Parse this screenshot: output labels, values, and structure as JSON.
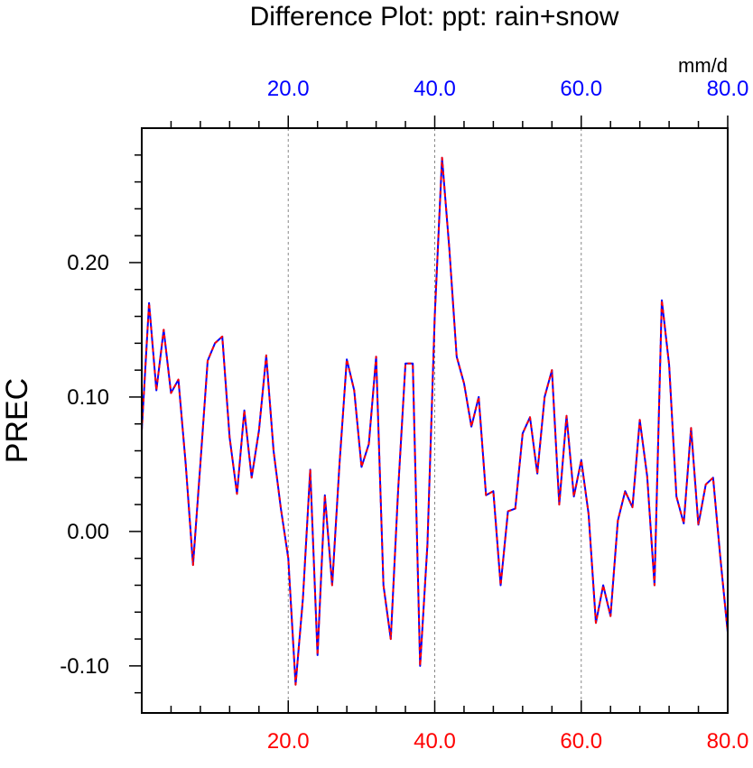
{
  "chart_data": {
    "type": "line",
    "title": "Difference Plot: ppt: rain+snow",
    "ylabel": "PREC",
    "top_axis_unit": "mm/d",
    "xlim": [
      0,
      80
    ],
    "ylim": [
      -0.135,
      0.3
    ],
    "x_ticks": [
      20,
      40,
      60,
      80
    ],
    "x_tick_labels": [
      "20.0",
      "40.0",
      "60.0",
      "80.0"
    ],
    "y_ticks": [
      -0.1,
      0.0,
      0.1,
      0.2
    ],
    "y_tick_labels": [
      "-0.10",
      "0.00",
      "0.10",
      "0.20"
    ],
    "bottom_tick_color": "#ff0000",
    "top_tick_color": "#0000ff",
    "vertical_gridlines_at": [
      20,
      40,
      60
    ],
    "series": [
      {
        "color": "#0000ff",
        "style": "solid",
        "x": [
          0,
          1,
          2,
          3,
          4,
          5,
          6,
          7,
          8,
          9,
          10,
          11,
          12,
          13,
          14,
          15,
          16,
          17,
          18,
          19,
          20,
          21,
          22,
          23,
          24,
          25,
          26,
          27,
          28,
          29,
          30,
          31,
          32,
          33,
          34,
          35,
          36,
          37,
          38,
          39,
          40,
          41,
          42,
          43,
          44,
          45,
          46,
          47,
          48,
          49,
          50,
          51,
          52,
          53,
          54,
          55,
          56,
          57,
          58,
          59,
          60,
          61,
          62,
          63,
          64,
          65,
          66,
          67,
          68,
          69,
          70,
          71,
          72,
          73,
          74,
          75,
          76,
          77,
          78,
          79,
          80
        ],
        "y": [
          0.075,
          0.17,
          0.105,
          0.15,
          0.103,
          0.113,
          0.05,
          -0.025,
          0.05,
          0.127,
          0.14,
          0.145,
          0.07,
          0.028,
          0.09,
          0.04,
          0.075,
          0.131,
          0.06,
          0.017,
          -0.02,
          -0.114,
          -0.05,
          0.046,
          -0.092,
          0.027,
          -0.04,
          0.05,
          0.128,
          0.105,
          0.048,
          0.065,
          0.13,
          -0.04,
          -0.08,
          0.03,
          0.125,
          0.125,
          -0.1,
          -0.01,
          0.16,
          0.278,
          0.21,
          0.13,
          0.11,
          0.078,
          0.1,
          0.027,
          0.03,
          -0.04,
          0.015,
          0.017,
          0.073,
          0.085,
          0.043,
          0.1,
          0.12,
          0.02,
          0.086,
          0.026,
          0.053,
          0.013,
          -0.068,
          -0.04,
          -0.063,
          0.008,
          0.03,
          0.018,
          0.083,
          0.041,
          -0.04,
          0.172,
          0.124,
          0.026,
          0.006,
          0.077,
          0.005,
          0.035,
          0.04,
          -0.02,
          -0.075
        ]
      },
      {
        "color": "#ff0000",
        "style": "dashed",
        "x": [
          0,
          1,
          2,
          3,
          4,
          5,
          6,
          7,
          8,
          9,
          10,
          11,
          12,
          13,
          14,
          15,
          16,
          17,
          18,
          19,
          20,
          21,
          22,
          23,
          24,
          25,
          26,
          27,
          28,
          29,
          30,
          31,
          32,
          33,
          34,
          35,
          36,
          37,
          38,
          39,
          40,
          41,
          42,
          43,
          44,
          45,
          46,
          47,
          48,
          49,
          50,
          51,
          52,
          53,
          54,
          55,
          56,
          57,
          58,
          59,
          60,
          61,
          62,
          63,
          64,
          65,
          66,
          67,
          68,
          69,
          70,
          71,
          72,
          73,
          74,
          75,
          76,
          77,
          78,
          79,
          80
        ],
        "y": [
          0.075,
          0.17,
          0.105,
          0.15,
          0.103,
          0.113,
          0.05,
          -0.025,
          0.05,
          0.127,
          0.14,
          0.145,
          0.07,
          0.028,
          0.09,
          0.04,
          0.075,
          0.131,
          0.06,
          0.017,
          -0.02,
          -0.114,
          -0.05,
          0.046,
          -0.092,
          0.027,
          -0.04,
          0.05,
          0.128,
          0.105,
          0.048,
          0.065,
          0.13,
          -0.04,
          -0.08,
          0.03,
          0.125,
          0.125,
          -0.1,
          -0.01,
          0.16,
          0.278,
          0.21,
          0.13,
          0.11,
          0.078,
          0.1,
          0.027,
          0.03,
          -0.04,
          0.015,
          0.017,
          0.073,
          0.085,
          0.043,
          0.1,
          0.12,
          0.02,
          0.086,
          0.026,
          0.053,
          0.013,
          -0.068,
          -0.04,
          -0.063,
          0.008,
          0.03,
          0.018,
          0.083,
          0.041,
          -0.04,
          0.172,
          0.124,
          0.026,
          0.006,
          0.077,
          0.005,
          0.035,
          0.04,
          -0.02,
          -0.075
        ]
      }
    ]
  }
}
